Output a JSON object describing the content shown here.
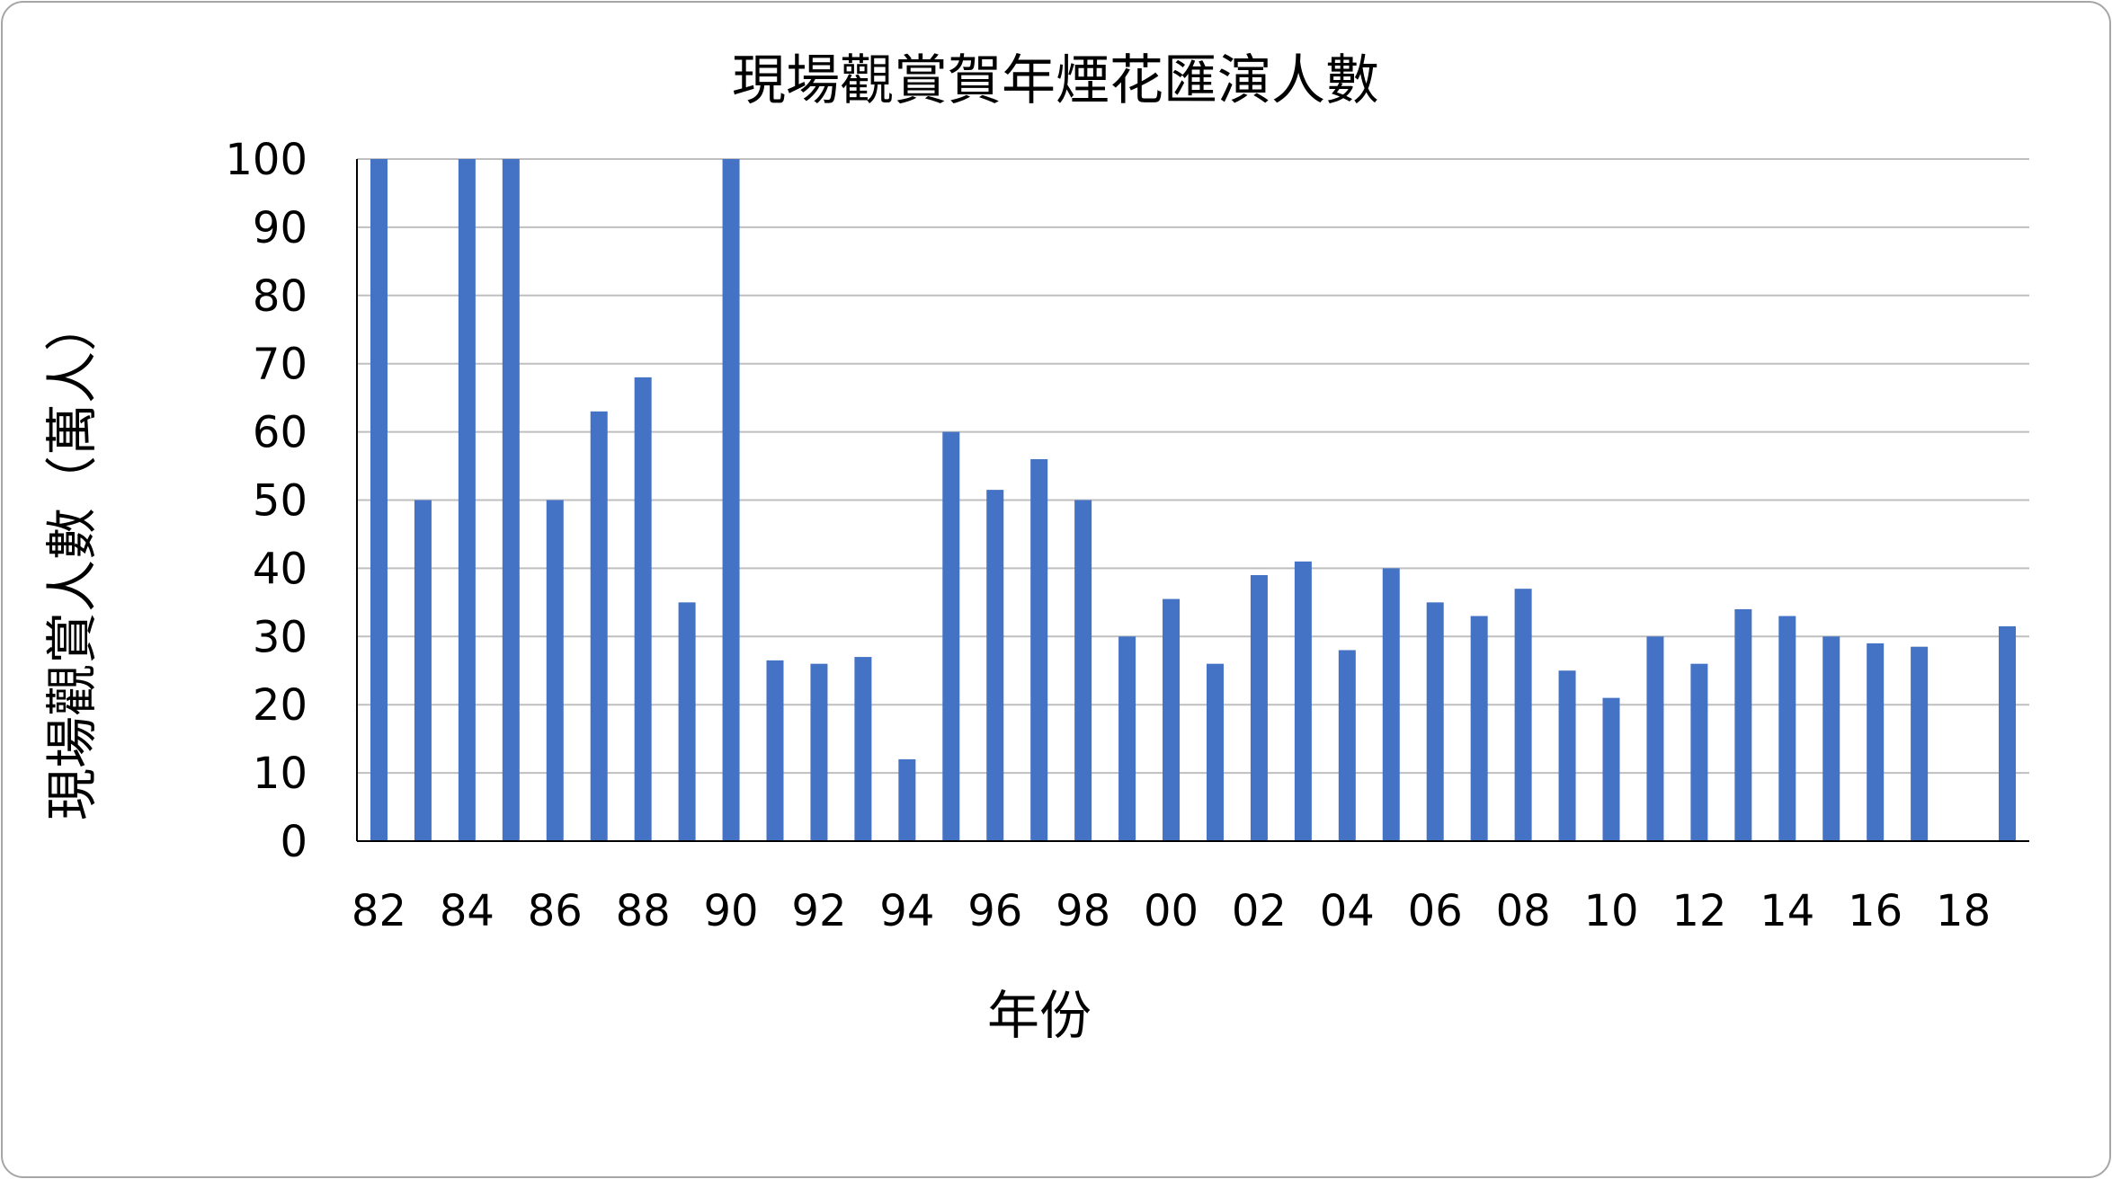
{
  "chart_data": {
    "type": "bar",
    "title": "現場觀賞賀年煙花匯演人數",
    "xlabel": "年份",
    "ylabel": "現場觀賞人數（萬人）",
    "ylim": [
      0,
      100
    ],
    "yticks": [
      0,
      10,
      20,
      30,
      40,
      50,
      60,
      70,
      80,
      90,
      100
    ],
    "grid": true,
    "color": "#4472c4",
    "categories": [
      "82",
      "83",
      "84",
      "85",
      "86",
      "87",
      "88",
      "89",
      "90",
      "91",
      "92",
      "93",
      "94",
      "95",
      "96",
      "97",
      "98",
      "99",
      "00",
      "01",
      "02",
      "03",
      "04",
      "05",
      "06",
      "07",
      "08",
      "09",
      "10",
      "11",
      "12",
      "13",
      "14",
      "15",
      "16",
      "17",
      "18",
      "19"
    ],
    "xtick_labels": [
      "82",
      "84",
      "86",
      "88",
      "90",
      "92",
      "94",
      "96",
      "98",
      "00",
      "02",
      "04",
      "06",
      "08",
      "10",
      "12",
      "14",
      "16",
      "18"
    ],
    "values": [
      100,
      50,
      100,
      100,
      50,
      63,
      68,
      35,
      100,
      26.5,
      26,
      27,
      12,
      60,
      51.5,
      56,
      50,
      30,
      35.5,
      26,
      39,
      41,
      28,
      40,
      35,
      33,
      37,
      25,
      21,
      30,
      26,
      34,
      33,
      30,
      29,
      28.5,
      null,
      31.5
    ]
  }
}
